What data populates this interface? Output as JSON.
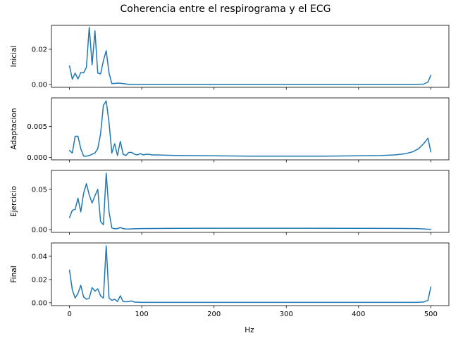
{
  "figure": {
    "title": "Coherencia entre el respirograma y el ECG",
    "xlabel": "Hz",
    "line_color": "#1f77b4"
  },
  "chart_data": [
    {
      "type": "line",
      "ylabel": "Inicial",
      "xlim": [
        -25,
        525
      ],
      "ylim": [
        -0.0016,
        0.0336
      ],
      "yticks": [
        0.0,
        0.02
      ],
      "ytick_labels": [
        "0.00",
        "0.02"
      ],
      "xticks": [
        0,
        100,
        200,
        300,
        400,
        500
      ],
      "xtick_labels": [],
      "x": [
        0,
        3.9,
        7.8,
        11.7,
        15.6,
        19.5,
        23.4,
        27.3,
        31.3,
        35.2,
        39.1,
        43,
        46.9,
        50.8,
        54.7,
        58.6,
        62.5,
        66.4,
        70.3,
        74.2,
        78.1,
        82,
        90,
        100,
        120,
        150,
        200,
        300,
        400,
        480,
        490,
        496,
        500
      ],
      "y": [
        0.0105,
        0.003,
        0.0065,
        0.0032,
        0.0068,
        0.0066,
        0.0098,
        0.0325,
        0.0112,
        0.0305,
        0.0065,
        0.006,
        0.0135,
        0.0192,
        0.0065,
        0.0005,
        0.0006,
        0.0008,
        0.0007,
        0.0005,
        0.0003,
        0.0001,
        0.0001,
        0.0001,
        0.0001,
        0.0001,
        0.0001,
        0.0001,
        0.0001,
        0.0001,
        0.0002,
        0.0014,
        0.0052
      ]
    },
    {
      "type": "line",
      "ylabel": "Adaptacion",
      "xlim": [
        -25,
        525
      ],
      "ylim": [
        -0.0004,
        0.0096
      ],
      "yticks": [
        0.0,
        0.005
      ],
      "ytick_labels": [
        "0.000",
        "0.005"
      ],
      "xticks": [
        0,
        100,
        200,
        300,
        400,
        500
      ],
      "xtick_labels": [],
      "x": [
        0,
        3.9,
        7.8,
        11.7,
        15.6,
        19.5,
        23.4,
        27.3,
        31.3,
        35.2,
        39.1,
        43,
        46.9,
        50.8,
        54.7,
        58.6,
        62.5,
        66.4,
        70.3,
        74.2,
        78.1,
        82,
        86,
        90,
        94,
        98,
        102,
        106,
        110,
        114,
        120,
        150,
        200,
        250,
        300,
        350,
        400,
        430,
        450,
        465,
        475,
        483,
        490,
        496,
        500
      ],
      "y": [
        0.0011,
        0.0007,
        0.0034,
        0.0034,
        0.0014,
        0.0002,
        0.0002,
        0.0003,
        0.0005,
        0.0007,
        0.0014,
        0.0038,
        0.0084,
        0.0091,
        0.0056,
        0.0007,
        0.0022,
        0.0003,
        0.0026,
        0.0005,
        0.0003,
        0.0008,
        0.0008,
        0.0005,
        0.0004,
        0.0006,
        0.0004,
        0.0005,
        0.0005,
        0.0004,
        0.0004,
        0.0003,
        0.00025,
        0.0002,
        0.0002,
        0.0002,
        0.00025,
        0.0003,
        0.0004,
        0.0006,
        0.0009,
        0.0014,
        0.0022,
        0.0031,
        0.0009
      ]
    },
    {
      "type": "line",
      "ylabel": "Ejercicio",
      "xlim": [
        -25,
        525
      ],
      "ylim": [
        -0.0035,
        0.0735
      ],
      "yticks": [
        0.0,
        0.05
      ],
      "ytick_labels": [
        "0.00",
        "0.05"
      ],
      "xticks": [
        0,
        100,
        200,
        300,
        400,
        500
      ],
      "xtick_labels": [],
      "x": [
        0,
        3.9,
        7.8,
        11.7,
        15.6,
        19.5,
        23.4,
        27.3,
        31.3,
        35.2,
        39.1,
        43,
        46.9,
        50.8,
        54.7,
        58.6,
        62.5,
        66.4,
        70.3,
        74.2,
        78.1,
        82,
        90,
        100,
        150,
        200,
        300,
        400,
        450,
        480,
        490,
        500
      ],
      "y": [
        0.015,
        0.024,
        0.025,
        0.039,
        0.022,
        0.045,
        0.057,
        0.043,
        0.033,
        0.042,
        0.05,
        0.01,
        0.006,
        0.07,
        0.022,
        0.002,
        0.001,
        0.0012,
        0.0025,
        0.0012,
        0.0008,
        0.0006,
        0.001,
        0.0012,
        0.0015,
        0.0016,
        0.0016,
        0.0015,
        0.0014,
        0.0012,
        0.0008,
        0.0003
      ]
    },
    {
      "type": "line",
      "ylabel": "Final",
      "xlim": [
        -25,
        525
      ],
      "ylim": [
        -0.0025,
        0.0515
      ],
      "yticks": [
        0.0,
        0.02,
        0.04
      ],
      "ytick_labels": [
        "0.00",
        "0.02",
        "0.04"
      ],
      "xticks": [
        0,
        100,
        200,
        300,
        400,
        500
      ],
      "xtick_labels": [
        "0",
        "100",
        "200",
        "300",
        "400",
        "500"
      ],
      "x": [
        0,
        3.9,
        7.8,
        11.7,
        15.6,
        19.5,
        23.4,
        27.3,
        31.3,
        35.2,
        39.1,
        43,
        46.9,
        50.8,
        54.7,
        58.6,
        62.5,
        66.4,
        70.3,
        74.2,
        78.1,
        82,
        86,
        90,
        100,
        150,
        200,
        300,
        400,
        480,
        490,
        496,
        500
      ],
      "y": [
        0.028,
        0.011,
        0.004,
        0.008,
        0.015,
        0.005,
        0.003,
        0.004,
        0.013,
        0.01,
        0.012,
        0.006,
        0.004,
        0.049,
        0.004,
        0.002,
        0.003,
        0.001,
        0.006,
        0.001,
        0.0008,
        0.001,
        0.0015,
        0.0005,
        0.0003,
        0.0003,
        0.0003,
        0.0003,
        0.0003,
        0.0003,
        0.0006,
        0.002,
        0.0135
      ]
    }
  ]
}
